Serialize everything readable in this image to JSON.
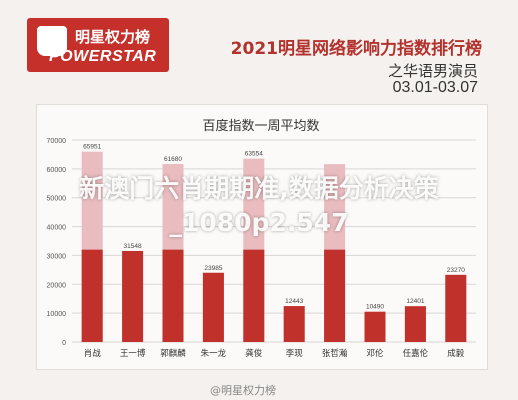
{
  "brand": {
    "cn": "明星权力榜",
    "en": "POWERSTAR"
  },
  "header": {
    "title": "2021明星网络影响力指数排行榜",
    "subtitle": "之华语男演员",
    "daterange": "03.01-03.07"
  },
  "watermark": {
    "line1": "新澳门六肖期期准,数据分析决策",
    "line2": "_1080p2.547"
  },
  "credit": "@明星权力榜",
  "colors": {
    "dark": "#c1312c",
    "light": "#e9bcbf",
    "accent": "#b3322d"
  },
  "chart_data": {
    "type": "bar",
    "title": "百度指数一周平均数",
    "xlabel": "",
    "ylabel": "",
    "ylim": [
      0,
      70000
    ],
    "yticks": [
      "0",
      "10000",
      "20000",
      "30000",
      "40000",
      "50000",
      "60000",
      "70000"
    ],
    "categories": [
      "肖战",
      "王一博",
      "郭麒麟",
      "朱一龙",
      "龚俊",
      "李现",
      "张哲瀚",
      "邓伦",
      "任嘉伦",
      "成毅"
    ],
    "values": [
      65951,
      31548,
      61680,
      23985,
      63554,
      12443,
      61626,
      10490,
      12401,
      23270
    ],
    "value_labels": [
      "65951",
      "31548",
      "61680",
      "23985",
      "63554",
      "12443",
      "",
      "10490",
      "12401",
      "23270"
    ],
    "grid": true,
    "legend": "none"
  }
}
